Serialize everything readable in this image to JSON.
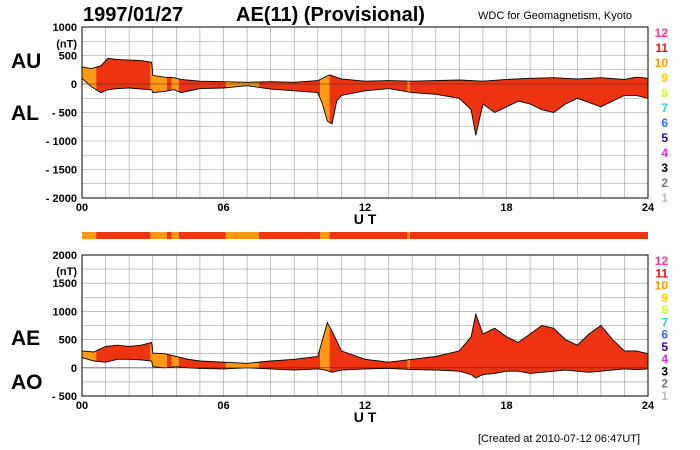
{
  "header": {
    "date": "1997/01/27",
    "title": "AE(11) (Provisional)",
    "source": "WDC for Geomagnetism, Kyoto"
  },
  "footer": {
    "created": "[Created at 2010-07-12 06:47UT]"
  },
  "legend": {
    "items": [
      {
        "label": "12",
        "color": "#ff3399"
      },
      {
        "label": "11",
        "color": "#ee1111"
      },
      {
        "label": "10",
        "color": "#ff9900"
      },
      {
        "label": "9",
        "color": "#ffcc00"
      },
      {
        "label": "8",
        "color": "#ccff33"
      },
      {
        "label": "7",
        "color": "#33cccc"
      },
      {
        "label": "6",
        "color": "#3366ff"
      },
      {
        "label": "5",
        "color": "#330099"
      },
      {
        "label": "4",
        "color": "#cc33cc"
      },
      {
        "label": "3",
        "color": "#000000"
      },
      {
        "label": "2",
        "color": "#777777"
      },
      {
        "label": "1",
        "color": "#bbbbbb"
      }
    ]
  },
  "colors": {
    "eleven": "#ee3311",
    "ten": "#ff9911",
    "outline": "#000000",
    "grid": "#999999"
  },
  "chart_data": [
    {
      "type": "area",
      "id": "au-al",
      "upper_label": "AU",
      "lower_label": "AL",
      "unit": "(nT)",
      "xlabel": "U T",
      "xlim": [
        0,
        24
      ],
      "ylim": [
        -2000,
        1000
      ],
      "yticks": [
        "1000",
        "500",
        "0",
        "- 500",
        "- 1000",
        "- 1500",
        "- 2000"
      ],
      "xticks": [
        "00",
        "06",
        "12",
        "18",
        "24"
      ],
      "segments": [
        {
          "from": 0,
          "to": 0.6,
          "n": 10
        },
        {
          "from": 0.6,
          "to": 2.9,
          "n": 11
        },
        {
          "from": 2.9,
          "to": 3.6,
          "n": 10
        },
        {
          "from": 3.6,
          "to": 3.8,
          "n": 11
        },
        {
          "from": 3.8,
          "to": 4.1,
          "n": 10
        },
        {
          "from": 4.1,
          "to": 6.1,
          "n": 11
        },
        {
          "from": 6.1,
          "to": 7.5,
          "n": 10
        },
        {
          "from": 7.5,
          "to": 10.1,
          "n": 11
        },
        {
          "from": 10.1,
          "to": 10.5,
          "n": 10
        },
        {
          "from": 10.5,
          "to": 13.8,
          "n": 11
        },
        {
          "from": 13.8,
          "to": 13.9,
          "n": 10
        },
        {
          "from": 13.9,
          "to": 24,
          "n": 11
        }
      ],
      "upper": [
        [
          0,
          300
        ],
        [
          0.4,
          270
        ],
        [
          0.8,
          320
        ],
        [
          1.1,
          450
        ],
        [
          1.5,
          430
        ],
        [
          2.0,
          420
        ],
        [
          2.5,
          410
        ],
        [
          2.95,
          380
        ],
        [
          3.0,
          150
        ],
        [
          3.5,
          120
        ],
        [
          3.9,
          110
        ],
        [
          4.2,
          80
        ],
        [
          5.0,
          50
        ],
        [
          6.0,
          40
        ],
        [
          7.0,
          30
        ],
        [
          8.0,
          40
        ],
        [
          9.0,
          30
        ],
        [
          10.0,
          60
        ],
        [
          10.5,
          160
        ],
        [
          11.0,
          90
        ],
        [
          12.0,
          50
        ],
        [
          13.0,
          60
        ],
        [
          14.0,
          50
        ],
        [
          15.0,
          60
        ],
        [
          16.0,
          70
        ],
        [
          17.0,
          50
        ],
        [
          18.0,
          80
        ],
        [
          19.0,
          100
        ],
        [
          20.0,
          110
        ],
        [
          21.0,
          90
        ],
        [
          22.0,
          110
        ],
        [
          23.0,
          80
        ],
        [
          23.5,
          120
        ],
        [
          24.0,
          100
        ]
      ],
      "lower": [
        [
          0,
          100
        ],
        [
          0.4,
          -50
        ],
        [
          0.8,
          -150
        ],
        [
          1.1,
          -100
        ],
        [
          1.5,
          -80
        ],
        [
          2.0,
          -70
        ],
        [
          2.5,
          -90
        ],
        [
          2.95,
          -100
        ],
        [
          3.0,
          -150
        ],
        [
          3.5,
          -130
        ],
        [
          3.9,
          -100
        ],
        [
          4.2,
          -150
        ],
        [
          5.0,
          -80
        ],
        [
          6.0,
          -70
        ],
        [
          7.0,
          -30
        ],
        [
          8.0,
          -90
        ],
        [
          9.0,
          -120
        ],
        [
          10.0,
          -150
        ],
        [
          10.2,
          -350
        ],
        [
          10.4,
          -650
        ],
        [
          10.6,
          -700
        ],
        [
          10.8,
          -300
        ],
        [
          11.0,
          -200
        ],
        [
          12.0,
          -120
        ],
        [
          13.0,
          -80
        ],
        [
          14.0,
          -150
        ],
        [
          15.0,
          -180
        ],
        [
          16.0,
          -250
        ],
        [
          16.5,
          -450
        ],
        [
          16.7,
          -900
        ],
        [
          17.0,
          -350
        ],
        [
          17.5,
          -500
        ],
        [
          18.0,
          -400
        ],
        [
          18.5,
          -300
        ],
        [
          19.0,
          -350
        ],
        [
          19.5,
          -450
        ],
        [
          20.0,
          -500
        ],
        [
          20.5,
          -350
        ],
        [
          21.0,
          -250
        ],
        [
          22.0,
          -400
        ],
        [
          22.5,
          -300
        ],
        [
          23.0,
          -200
        ],
        [
          23.5,
          -200
        ],
        [
          24.0,
          -250
        ]
      ]
    },
    {
      "type": "area",
      "id": "ae-ao",
      "upper_label": "AE",
      "lower_label": "AO",
      "unit": "(nT)",
      "xlabel": "U T",
      "xlim": [
        0,
        24
      ],
      "ylim": [
        -500,
        2000
      ],
      "yticks": [
        "2000",
        "1500",
        "1000",
        "500",
        "0",
        "- 500"
      ],
      "xticks": [
        "00",
        "06",
        "12",
        "18",
        "24"
      ],
      "segments": [
        {
          "from": 0,
          "to": 0.6,
          "n": 10
        },
        {
          "from": 0.6,
          "to": 2.9,
          "n": 11
        },
        {
          "from": 2.9,
          "to": 3.6,
          "n": 10
        },
        {
          "from": 3.6,
          "to": 3.8,
          "n": 11
        },
        {
          "from": 3.8,
          "to": 4.1,
          "n": 10
        },
        {
          "from": 4.1,
          "to": 6.1,
          "n": 11
        },
        {
          "from": 6.1,
          "to": 7.5,
          "n": 10
        },
        {
          "from": 7.5,
          "to": 10.1,
          "n": 11
        },
        {
          "from": 10.1,
          "to": 10.5,
          "n": 10
        },
        {
          "from": 10.5,
          "to": 13.8,
          "n": 11
        },
        {
          "from": 13.8,
          "to": 13.9,
          "n": 10
        },
        {
          "from": 13.9,
          "to": 24,
          "n": 11
        }
      ],
      "upper": [
        [
          0,
          300
        ],
        [
          0.5,
          280
        ],
        [
          1.0,
          380
        ],
        [
          1.5,
          400
        ],
        [
          2.0,
          380
        ],
        [
          2.5,
          400
        ],
        [
          2.95,
          450
        ],
        [
          3.0,
          260
        ],
        [
          3.5,
          250
        ],
        [
          4.0,
          200
        ],
        [
          4.5,
          150
        ],
        [
          5.0,
          120
        ],
        [
          6.0,
          100
        ],
        [
          7.0,
          80
        ],
        [
          8.0,
          120
        ],
        [
          9.0,
          150
        ],
        [
          10.0,
          200
        ],
        [
          10.2,
          500
        ],
        [
          10.4,
          800
        ],
        [
          10.6,
          650
        ],
        [
          11.0,
          300
        ],
        [
          12.0,
          150
        ],
        [
          13.0,
          100
        ],
        [
          14.0,
          150
        ],
        [
          15.0,
          200
        ],
        [
          16.0,
          300
        ],
        [
          16.5,
          550
        ],
        [
          16.7,
          950
        ],
        [
          17.0,
          600
        ],
        [
          17.5,
          700
        ],
        [
          18.0,
          550
        ],
        [
          18.5,
          450
        ],
        [
          19.0,
          600
        ],
        [
          19.5,
          750
        ],
        [
          20.0,
          700
        ],
        [
          20.5,
          500
        ],
        [
          21.0,
          400
        ],
        [
          21.5,
          600
        ],
        [
          22.0,
          750
        ],
        [
          22.5,
          500
        ],
        [
          23.0,
          300
        ],
        [
          23.5,
          300
        ],
        [
          24.0,
          250
        ]
      ],
      "lower": [
        [
          0,
          180
        ],
        [
          0.5,
          120
        ],
        [
          1.0,
          100
        ],
        [
          1.5,
          150
        ],
        [
          2.0,
          150
        ],
        [
          2.5,
          140
        ],
        [
          2.95,
          120
        ],
        [
          3.0,
          20
        ],
        [
          3.5,
          0
        ],
        [
          4.0,
          20
        ],
        [
          4.5,
          0
        ],
        [
          5.0,
          -10
        ],
        [
          6.0,
          -20
        ],
        [
          7.0,
          0
        ],
        [
          8.0,
          -20
        ],
        [
          9.0,
          -40
        ],
        [
          10.0,
          -20
        ],
        [
          10.2,
          -30
        ],
        [
          10.4,
          -50
        ],
        [
          10.6,
          -80
        ],
        [
          11.0,
          -40
        ],
        [
          12.0,
          -20
        ],
        [
          13.0,
          -10
        ],
        [
          14.0,
          -30
        ],
        [
          15.0,
          -40
        ],
        [
          16.0,
          -60
        ],
        [
          16.5,
          -120
        ],
        [
          16.7,
          -180
        ],
        [
          17.0,
          -120
        ],
        [
          17.5,
          -100
        ],
        [
          18.0,
          -60
        ],
        [
          18.5,
          -60
        ],
        [
          19.0,
          -100
        ],
        [
          19.5,
          -80
        ],
        [
          20.0,
          -60
        ],
        [
          20.5,
          -40
        ],
        [
          21.0,
          -60
        ],
        [
          21.5,
          -80
        ],
        [
          22.0,
          -60
        ],
        [
          22.5,
          -40
        ],
        [
          23.0,
          -20
        ],
        [
          23.5,
          -30
        ],
        [
          24.0,
          -20
        ]
      ]
    }
  ]
}
